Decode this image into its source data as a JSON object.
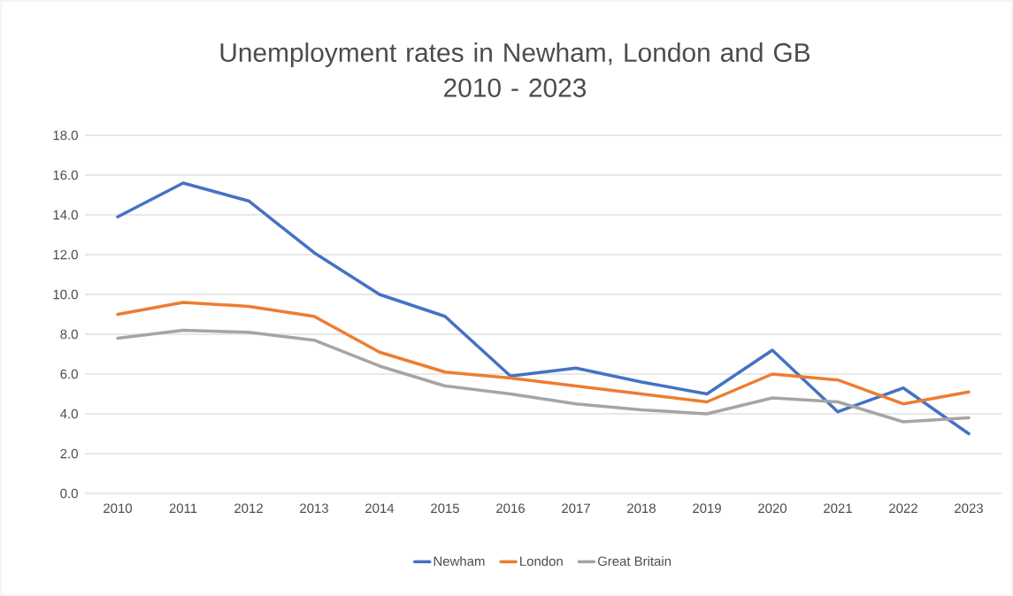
{
  "chart_data": {
    "type": "line",
    "title": "Unemployment rates in Newham, London and GB\n2010 - 2023",
    "categories": [
      "2010",
      "2011",
      "2012",
      "2013",
      "2014",
      "2015",
      "2016",
      "2017",
      "2018",
      "2019",
      "2020",
      "2021",
      "2022",
      "2023"
    ],
    "series": [
      {
        "name": "Newham",
        "color": "#4472c4",
        "values": [
          13.9,
          15.6,
          14.7,
          12.1,
          10.0,
          8.9,
          5.9,
          6.3,
          5.6,
          5.0,
          7.2,
          4.1,
          5.3,
          3.0
        ]
      },
      {
        "name": "London",
        "color": "#ed7d31",
        "values": [
          9.0,
          9.6,
          9.4,
          8.9,
          7.1,
          6.1,
          5.8,
          5.4,
          5.0,
          4.6,
          6.0,
          5.7,
          4.5,
          5.1
        ]
      },
      {
        "name": "Great Britain",
        "color": "#a5a5a5",
        "values": [
          7.8,
          8.2,
          8.1,
          7.7,
          6.4,
          5.4,
          5.0,
          4.5,
          4.2,
          4.0,
          4.8,
          4.6,
          3.6,
          3.8
        ]
      }
    ],
    "ylim": [
      0,
      18
    ],
    "yticks": [
      {
        "value": 0,
        "label": "0.0"
      },
      {
        "value": 2,
        "label": "2.0"
      },
      {
        "value": 4,
        "label": "4.0"
      },
      {
        "value": 6,
        "label": "6.0"
      },
      {
        "value": 8,
        "label": "8.0"
      },
      {
        "value": 10,
        "label": "10.0"
      },
      {
        "value": 12,
        "label": "12.0"
      },
      {
        "value": 14,
        "label": "14.0"
      },
      {
        "value": 16,
        "label": "16.0"
      },
      {
        "value": 18,
        "label": "18.0"
      }
    ],
    "grid": "y",
    "legend": "bottom",
    "marker": "none",
    "line_style": "solid"
  }
}
